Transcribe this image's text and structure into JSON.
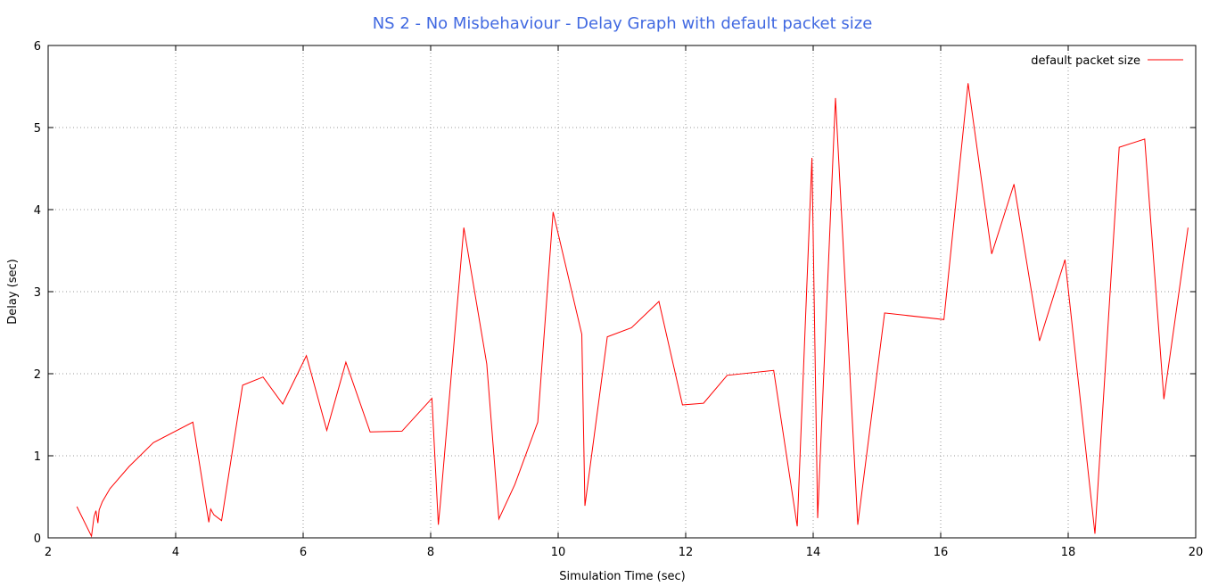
{
  "chart_data": {
    "type": "line",
    "title": "NS 2 - No Misbehaviour - Delay Graph with default packet size",
    "xlabel": "Simulation Time (sec)",
    "ylabel": "Delay (sec)",
    "xlim": [
      2,
      20
    ],
    "ylim": [
      0,
      6
    ],
    "xticks": [
      2,
      4,
      6,
      8,
      10,
      12,
      14,
      16,
      18,
      20
    ],
    "yticks": [
      0,
      1,
      2,
      3,
      4,
      5,
      6
    ],
    "grid": true,
    "grid_style": "dotted",
    "legend_position": "top-right",
    "title_color": "#4169e1",
    "series": [
      {
        "name": "default packet size",
        "color": "#ff0000",
        "x": [
          2.45,
          2.68,
          2.72,
          2.75,
          2.78,
          2.8,
          2.85,
          2.97,
          3.27,
          3.65,
          4.27,
          4.52,
          4.55,
          4.6,
          4.72,
          5.05,
          5.37,
          5.68,
          6.05,
          6.37,
          6.67,
          7.05,
          7.55,
          8.02,
          8.12,
          8.15,
          8.52,
          8.88,
          9.07,
          9.32,
          9.68,
          9.92,
          10.37,
          10.42,
          10.77,
          11.15,
          11.58,
          11.95,
          12.28,
          12.65,
          13.38,
          13.75,
          13.98,
          14.07,
          14.35,
          14.7,
          15.12,
          16.05,
          16.43,
          16.8,
          17.15,
          17.55,
          17.95,
          18.42,
          18.8,
          19.2,
          19.5,
          19.88
        ],
        "y": [
          0.38,
          0.02,
          0.26,
          0.33,
          0.18,
          0.34,
          0.44,
          0.6,
          0.87,
          1.16,
          1.41,
          0.19,
          0.35,
          0.28,
          0.21,
          1.86,
          1.96,
          1.63,
          2.22,
          1.31,
          2.14,
          1.29,
          1.3,
          1.7,
          0.16,
          0.4,
          3.78,
          2.12,
          0.23,
          0.65,
          1.41,
          3.97,
          2.48,
          0.39,
          2.45,
          2.56,
          2.88,
          1.62,
          1.64,
          1.98,
          2.04,
          0.14,
          4.63,
          0.24,
          5.36,
          0.16,
          2.74,
          2.66,
          5.54,
          3.46,
          4.31,
          2.4,
          3.39,
          0.05,
          4.76,
          4.86,
          1.69,
          3.78
        ]
      }
    ]
  }
}
